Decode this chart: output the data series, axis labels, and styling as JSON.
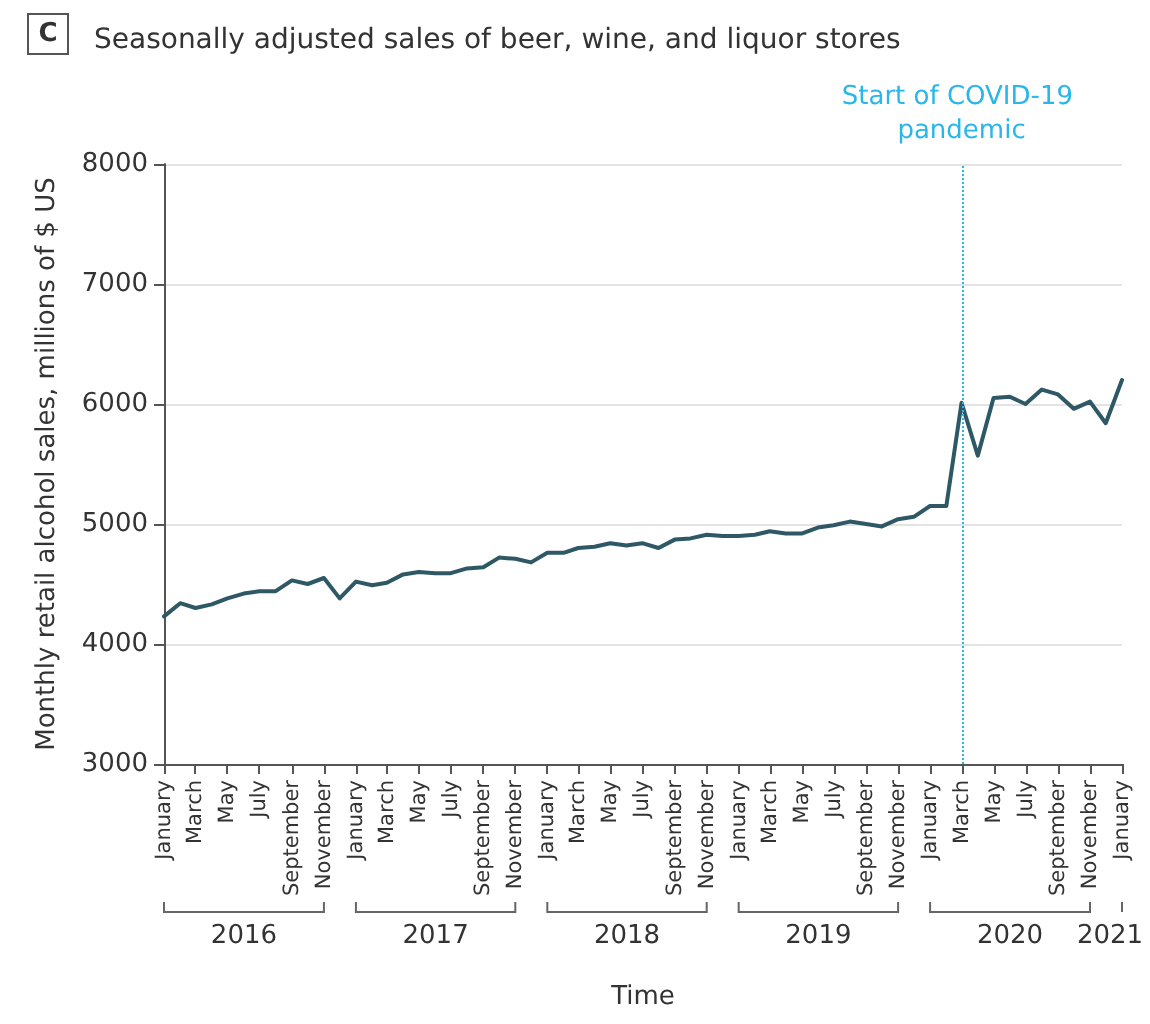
{
  "chart_data": {
    "type": "line",
    "title": "Seasonally adjusted sales of beer, wine, and liquor stores",
    "xlabel": "Time",
    "ylabel": "Monthly retail alcohol sales, millions of $ US",
    "annotations": [
      "C",
      "2016",
      "2017",
      "2018",
      "2019",
      "2020",
      "2021"
    ],
    "x": [
      "2016-01",
      "2016-02",
      "2016-03",
      "2016-04",
      "2016-05",
      "2016-06",
      "2016-07",
      "2016-08",
      "2016-09",
      "2016-10",
      "2016-11",
      "2016-12",
      "2017-01",
      "2017-02",
      "2017-03",
      "2017-04",
      "2017-05",
      "2017-06",
      "2017-07",
      "2017-08",
      "2017-09",
      "2017-10",
      "2017-11",
      "2017-12",
      "2018-01",
      "2018-02",
      "2018-03",
      "2018-04",
      "2018-05",
      "2018-06",
      "2018-07",
      "2018-08",
      "2018-09",
      "2018-10",
      "2018-11",
      "2018-12",
      "2019-01",
      "2019-02",
      "2019-03",
      "2019-04",
      "2019-05",
      "2019-06",
      "2019-07",
      "2019-08",
      "2019-09",
      "2019-10",
      "2019-11",
      "2019-12",
      "2020-01",
      "2020-02",
      "2020-03",
      "2020-04",
      "2020-05",
      "2020-06",
      "2020-07",
      "2020-08",
      "2020-09",
      "2020-10",
      "2020-11",
      "2020-12",
      "2021-01"
    ],
    "series": [
      {
        "color": "#2f5866",
        "values": [
          4230,
          4340,
          4300,
          4330,
          4380,
          4420,
          4440,
          4440,
          4530,
          4500,
          4550,
          4380,
          4520,
          4490,
          4510,
          4580,
          4600,
          4590,
          4590,
          4630,
          4640,
          4720,
          4710,
          4680,
          4760,
          4760,
          4800,
          4810,
          4840,
          4820,
          4840,
          4800,
          4870,
          4880,
          4910,
          4900,
          4900,
          4910,
          4940,
          4920,
          4920,
          4970,
          4990,
          5020,
          5000,
          4980,
          5040,
          5060,
          5150,
          5150,
          6010,
          5570,
          6050,
          6060,
          6000,
          6120,
          6080,
          5960,
          6020,
          5840,
          6200
        ]
      }
    ],
    "xlim": [
      "2016-01",
      "2021-01"
    ],
    "xticks": [
      {
        "value": "2016-01",
        "label": "January"
      },
      {
        "value": "2016-03",
        "label": "March"
      },
      {
        "value": "2016-05",
        "label": "May"
      },
      {
        "value": "2016-07",
        "label": "July"
      },
      {
        "value": "2016-09",
        "label": "September"
      },
      {
        "value": "2016-11",
        "label": "November"
      },
      {
        "value": "2017-01",
        "label": "January"
      },
      {
        "value": "2017-03",
        "label": "March"
      },
      {
        "value": "2017-05",
        "label": "May"
      },
      {
        "value": "2017-07",
        "label": "July"
      },
      {
        "value": "2017-09",
        "label": "September"
      },
      {
        "value": "2017-11",
        "label": "November"
      },
      {
        "value": "2018-01",
        "label": "January"
      },
      {
        "value": "2018-03",
        "label": "March"
      },
      {
        "value": "2018-05",
        "label": "May"
      },
      {
        "value": "2018-07",
        "label": "July"
      },
      {
        "value": "2018-09",
        "label": "September"
      },
      {
        "value": "2018-11",
        "label": "November"
      },
      {
        "value": "2019-01",
        "label": "January"
      },
      {
        "value": "2019-03",
        "label": "March"
      },
      {
        "value": "2019-05",
        "label": "May"
      },
      {
        "value": "2019-07",
        "label": "July"
      },
      {
        "value": "2019-09",
        "label": "September"
      },
      {
        "value": "2019-11",
        "label": "November"
      },
      {
        "value": "2020-01",
        "label": "January"
      },
      {
        "value": "2020-03",
        "label": "March"
      },
      {
        "value": "2020-05",
        "label": "May"
      },
      {
        "value": "2020-07",
        "label": "July"
      },
      {
        "value": "2020-09",
        "label": "September"
      },
      {
        "value": "2020-11",
        "label": "November"
      },
      {
        "value": "2021-01",
        "label": "January"
      }
    ],
    "ylim": [
      3000,
      8000
    ],
    "yticks": [
      3000,
      4000,
      5000,
      6000,
      7000,
      8000
    ],
    "ref_lines": [
      {
        "axis": "x",
        "value": "2020-03",
        "label": "Start of COVID-19 pandemic",
        "color": "#29b6e8",
        "line_style": "dotted"
      }
    ],
    "grid": "y",
    "marker": "none",
    "line_style": "solid"
  }
}
